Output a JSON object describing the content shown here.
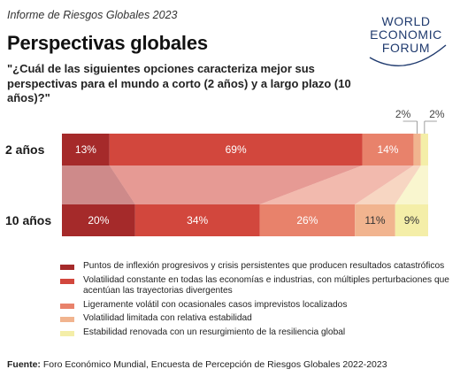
{
  "header": {
    "report": "Informe de Riesgos Globales 2023",
    "title": "Perspectivas globales",
    "question": "\"¿Cuál de las siguientes opciones caracteriza mejor sus perspectivas para el mundo a corto (2 años) y a largo plazo (10 años)?\""
  },
  "logo": {
    "line1": "WORLD",
    "line2": "ECONOMIC",
    "line3": "FORUM"
  },
  "chart_data": {
    "type": "bar",
    "orientation": "horizontal",
    "stacked": true,
    "normalized": true,
    "categories": [
      "2 años",
      "10 años"
    ],
    "series": [
      {
        "name": "Puntos de inflexión progresivos y crisis persistentes que producen resultados catastróficos",
        "values": [
          13,
          20
        ],
        "labels": [
          "13%",
          "20%"
        ],
        "color": "#A52A2A"
      },
      {
        "name": "Volatilidad constante en todas las economías e industrias, con múltiples perturbaciones que acentúan las trayectorias divergentes",
        "values": [
          69,
          34
        ],
        "labels": [
          "69%",
          "34%"
        ],
        "color": "#D2473D"
      },
      {
        "name": "Ligeramente volátil con ocasionales casos imprevistos localizados",
        "values": [
          14,
          26
        ],
        "labels": [
          "14%",
          "26%"
        ],
        "color": "#E8826B"
      },
      {
        "name": "Volatilidad limitada con relativa estabilidad",
        "values": [
          2,
          11
        ],
        "labels": [
          "2%",
          "11%"
        ],
        "color": "#F1B48F"
      },
      {
        "name": "Estabilidad renovada con un resurgimiento de la resiliencia global",
        "values": [
          2,
          9
        ],
        "labels": [
          "2%",
          "9%"
        ],
        "color": "#F4EEA8"
      }
    ],
    "legend_position": "bottom"
  },
  "source": {
    "label": "Fuente:",
    "text": " Foro Económico Mundial, Encuesta de Percepción de Riesgos Globales 2022-2023"
  }
}
